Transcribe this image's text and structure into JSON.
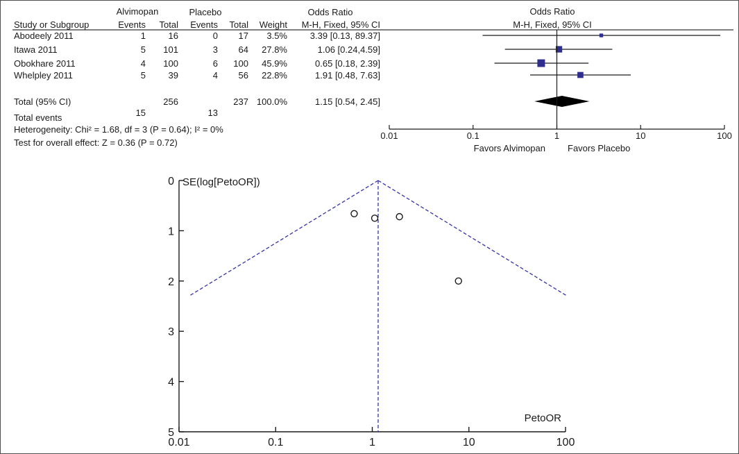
{
  "chart_data": [
    {
      "type": "table",
      "group_headers": {
        "experimental": "Alvimopan",
        "control": "Placebo",
        "effect": "Odds Ratio",
        "plot": "Odds Ratio"
      },
      "columns": {
        "study": "Study or Subgroup",
        "exp_events": "Events",
        "exp_total": "Total",
        "ctl_events": "Events",
        "ctl_total": "Total",
        "weight": "Weight",
        "effect": "M-H, Fixed, 95% CI",
        "plot": "M-H, Fixed, 95% CI"
      },
      "studies": [
        {
          "name": "Abodeely 2011",
          "exp_events": "1",
          "exp_total": "16",
          "ctl_events": "0",
          "ctl_total": "17",
          "weight": "3.5%",
          "ci_text": "3.39 [0.13, 89.37]",
          "or": 3.39,
          "lo": 0.13,
          "hi": 89.37,
          "w": 3.5
        },
        {
          "name": "Itawa 2011",
          "exp_events": "5",
          "exp_total": "101",
          "ctl_events": "3",
          "ctl_total": "64",
          "weight": "27.8%",
          "ci_text": "1.06 [0.24,4.59]",
          "or": 1.06,
          "lo": 0.24,
          "hi": 4.59,
          "w": 27.8
        },
        {
          "name": "Obokhare 2011",
          "exp_events": "4",
          "exp_total": "100",
          "ctl_events": "6",
          "ctl_total": "100",
          "weight": "45.9%",
          "ci_text": "0.65 [0.18, 2.39]",
          "or": 0.65,
          "lo": 0.18,
          "hi": 2.39,
          "w": 45.9
        },
        {
          "name": "Whelpley 2011",
          "exp_events": "5",
          "exp_total": "39",
          "ctl_events": "4",
          "ctl_total": "56",
          "weight": "22.8%",
          "ci_text": "1.91 [0.48, 7.63]",
          "or": 1.91,
          "lo": 0.48,
          "hi": 7.63,
          "w": 22.8
        }
      ],
      "total": {
        "name": "Total (95% CI)",
        "exp_total": "256",
        "ctl_total": "237",
        "weight": "100.0%",
        "ci_text": "1.15 [0.54, 2.45]",
        "or": 1.15,
        "lo": 0.54,
        "hi": 2.45
      },
      "events": {
        "label": "Total events",
        "exp": "15",
        "ctl": "13"
      },
      "heterogeneity": "Heterogeneity: Chi² = 1.68, df = 3 (P = 0.64); I² = 0%",
      "overall_effect": "Test for overall effect: Z = 0.36 (P = 0.72)",
      "axis": {
        "scale": "log",
        "range": [
          0.01,
          100
        ],
        "ticks": [
          "0.01",
          "0.1",
          "1",
          "10",
          "100"
        ],
        "tick_values": [
          0.01,
          0.1,
          1,
          10,
          100
        ]
      },
      "favors": {
        "left": "Favors Alvimopan",
        "right": "Favors Placebo"
      },
      "colors": {
        "square": "#2e2e8f",
        "diamond": "#000000"
      }
    },
    {
      "type": "scatter",
      "subtype": "funnel",
      "ylabel": "SE(log[PetoOR])",
      "xlabel": "PetoOR",
      "x_scale": "log",
      "xlim": [
        0.01,
        100
      ],
      "ylim": [
        0,
        5
      ],
      "y_inverted": true,
      "x_ticks": [
        "0.01",
        "0.1",
        "1",
        "10",
        "100"
      ],
      "x_tick_values": [
        0.01,
        0.1,
        1,
        10,
        100
      ],
      "y_ticks": [
        "0",
        "1",
        "2",
        "3",
        "4",
        "5"
      ],
      "y_tick_values": [
        0,
        1,
        2,
        3,
        4,
        5
      ],
      "points": [
        {
          "x": 0.65,
          "y": 0.66
        },
        {
          "x": 1.06,
          "y": 0.75
        },
        {
          "x": 1.91,
          "y": 0.72
        },
        {
          "x": 7.8,
          "y": 2.0
        }
      ],
      "pooled_or": 1.15,
      "funnel_se_max": 2.3,
      "colors": {
        "funnel": "#3333aa",
        "points": "#1a1a1a"
      }
    }
  ]
}
